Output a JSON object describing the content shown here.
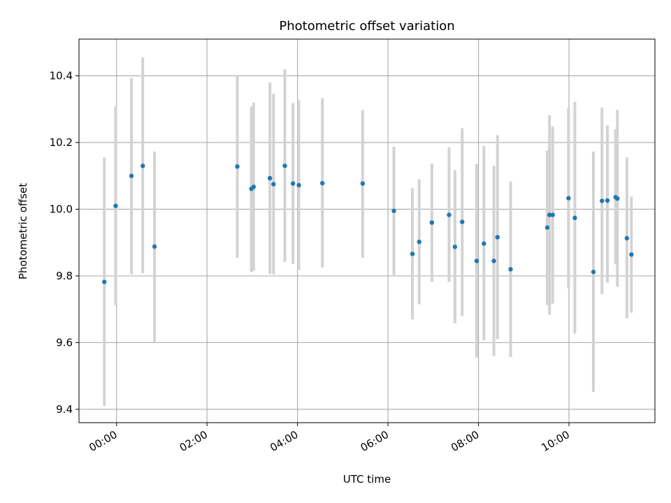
{
  "chart_data": {
    "type": "scatter",
    "title": "Photometric offset variation",
    "xlabel": "UTC time",
    "ylabel": "Photometric offset",
    "x_unit": "hours UTC",
    "xlim": [
      -0.83,
      11.9
    ],
    "ylim": [
      9.36,
      10.51
    ],
    "grid": true,
    "x_ticks": [
      {
        "value": 0,
        "label": "00:00"
      },
      {
        "value": 2,
        "label": "02:00"
      },
      {
        "value": 4,
        "label": "04:00"
      },
      {
        "value": 6,
        "label": "06:00"
      },
      {
        "value": 8,
        "label": "08:00"
      },
      {
        "value": 10,
        "label": "10:00"
      }
    ],
    "y_ticks": [
      {
        "value": 9.4,
        "label": "9.4"
      },
      {
        "value": 9.6,
        "label": "9.6"
      },
      {
        "value": 9.8,
        "label": "9.8"
      },
      {
        "value": 10.0,
        "label": "10.0"
      },
      {
        "value": 10.2,
        "label": "10.2"
      },
      {
        "value": 10.4,
        "label": "10.4"
      }
    ],
    "colors": {
      "point": "#1f77b4",
      "errorbar": "#d3d3d3",
      "grid": "#b0b0b0"
    },
    "points": [
      {
        "x": -0.27,
        "y": 9.782,
        "ylow": 9.41,
        "yhigh": 10.155
      },
      {
        "x": -0.02,
        "y": 10.01,
        "ylow": 9.712,
        "yhigh": 10.308
      },
      {
        "x": 0.33,
        "y": 10.1,
        "ylow": 9.805,
        "yhigh": 10.393
      },
      {
        "x": 0.58,
        "y": 10.13,
        "ylow": 9.808,
        "yhigh": 10.455
      },
      {
        "x": 0.84,
        "y": 9.888,
        "ylow": 9.6,
        "yhigh": 10.173
      },
      {
        "x": 2.67,
        "y": 10.128,
        "ylow": 9.855,
        "yhigh": 10.4
      },
      {
        "x": 2.98,
        "y": 10.061,
        "ylow": 9.812,
        "yhigh": 10.308
      },
      {
        "x": 3.03,
        "y": 10.067,
        "ylow": 9.815,
        "yhigh": 10.32
      },
      {
        "x": 3.39,
        "y": 10.093,
        "ylow": 9.806,
        "yhigh": 10.38
      },
      {
        "x": 3.47,
        "y": 10.075,
        "ylow": 9.805,
        "yhigh": 10.346
      },
      {
        "x": 3.72,
        "y": 10.13,
        "ylow": 9.842,
        "yhigh": 10.42
      },
      {
        "x": 3.9,
        "y": 10.077,
        "ylow": 9.836,
        "yhigh": 10.318
      },
      {
        "x": 4.03,
        "y": 10.072,
        "ylow": 9.818,
        "yhigh": 10.327
      },
      {
        "x": 4.55,
        "y": 10.078,
        "ylow": 9.825,
        "yhigh": 10.333
      },
      {
        "x": 5.44,
        "y": 10.077,
        "ylow": 9.855,
        "yhigh": 10.297
      },
      {
        "x": 6.13,
        "y": 9.995,
        "ylow": 9.8,
        "yhigh": 10.188
      },
      {
        "x": 6.54,
        "y": 9.866,
        "ylow": 9.67,
        "yhigh": 10.063
      },
      {
        "x": 6.69,
        "y": 9.902,
        "ylow": 9.715,
        "yhigh": 10.09
      },
      {
        "x": 6.97,
        "y": 9.96,
        "ylow": 9.782,
        "yhigh": 10.137
      },
      {
        "x": 7.35,
        "y": 9.983,
        "ylow": 9.782,
        "yhigh": 10.185
      },
      {
        "x": 7.48,
        "y": 9.887,
        "ylow": 9.658,
        "yhigh": 10.117
      },
      {
        "x": 7.64,
        "y": 9.962,
        "ylow": 9.68,
        "yhigh": 10.243
      },
      {
        "x": 7.96,
        "y": 9.845,
        "ylow": 9.555,
        "yhigh": 10.135
      },
      {
        "x": 8.12,
        "y": 9.897,
        "ylow": 9.607,
        "yhigh": 10.19
      },
      {
        "x": 8.34,
        "y": 9.845,
        "ylow": 9.56,
        "yhigh": 10.13
      },
      {
        "x": 8.42,
        "y": 9.916,
        "ylow": 9.61,
        "yhigh": 10.222
      },
      {
        "x": 8.71,
        "y": 9.82,
        "ylow": 9.557,
        "yhigh": 10.083
      },
      {
        "x": 9.52,
        "y": 9.945,
        "ylow": 9.713,
        "yhigh": 10.176
      },
      {
        "x": 9.57,
        "y": 9.983,
        "ylow": 9.683,
        "yhigh": 10.282
      },
      {
        "x": 9.64,
        "y": 9.983,
        "ylow": 9.717,
        "yhigh": 10.248
      },
      {
        "x": 9.99,
        "y": 10.033,
        "ylow": 9.763,
        "yhigh": 10.303
      },
      {
        "x": 10.13,
        "y": 9.974,
        "ylow": 9.627,
        "yhigh": 10.322
      },
      {
        "x": 10.54,
        "y": 9.812,
        "ylow": 9.452,
        "yhigh": 10.173
      },
      {
        "x": 10.73,
        "y": 10.025,
        "ylow": 9.745,
        "yhigh": 10.305
      },
      {
        "x": 10.85,
        "y": 10.026,
        "ylow": 9.78,
        "yhigh": 10.251
      },
      {
        "x": 11.03,
        "y": 10.036,
        "ylow": 9.835,
        "yhigh": 10.24
      },
      {
        "x": 11.07,
        "y": 10.032,
        "ylow": 9.768,
        "yhigh": 10.297
      },
      {
        "x": 11.28,
        "y": 9.913,
        "ylow": 9.673,
        "yhigh": 10.155
      },
      {
        "x": 11.38,
        "y": 9.864,
        "ylow": 9.69,
        "yhigh": 10.038
      }
    ]
  }
}
